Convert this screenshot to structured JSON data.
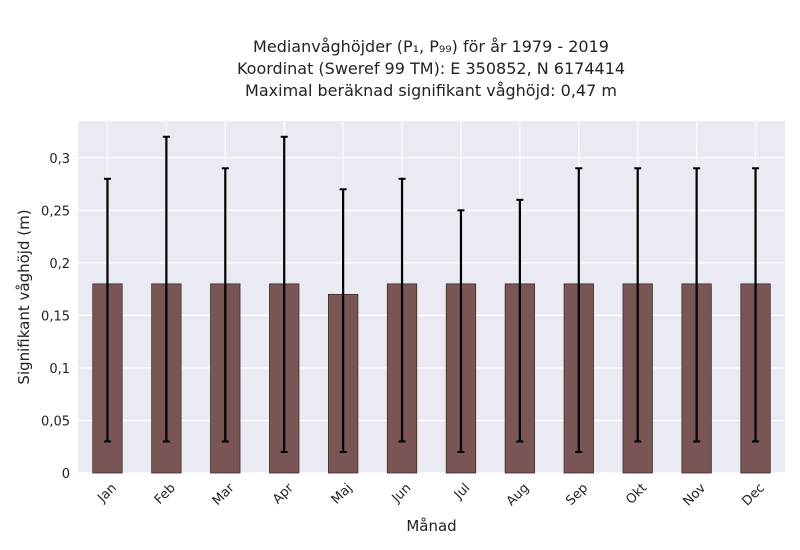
{
  "chart_data": {
    "type": "bar",
    "title_lines": [
      "Medianvåghöjder (P₁, P₉₉) för år 1979 - 2019",
      "Koordinat (Sweref 99 TM): E 350852, N 6174414",
      "Maximal beräknad signifikant våghöjd: 0,47 m"
    ],
    "xlabel": "Månad",
    "ylabel": "Signifikant våghöjd (m)",
    "ylim": [
      0,
      0.335
    ],
    "yticks": [
      0,
      0.05,
      0.1,
      0.15,
      0.2,
      0.25,
      0.3
    ],
    "ytick_labels": [
      "0",
      "0,05",
      "0,1",
      "0,15",
      "0,2",
      "0,25",
      "0,3"
    ],
    "categories": [
      "Jan",
      "Feb",
      "Mar",
      "Apr",
      "Maj",
      "Jun",
      "Jul",
      "Aug",
      "Sep",
      "Okt",
      "Nov",
      "Dec"
    ],
    "values": [
      0.18,
      0.18,
      0.18,
      0.18,
      0.17,
      0.18,
      0.18,
      0.18,
      0.18,
      0.18,
      0.18,
      0.18
    ],
    "p1": [
      0.03,
      0.03,
      0.03,
      0.02,
      0.02,
      0.03,
      0.02,
      0.03,
      0.02,
      0.03,
      0.03,
      0.03
    ],
    "p99": [
      0.28,
      0.32,
      0.29,
      0.32,
      0.27,
      0.28,
      0.25,
      0.26,
      0.29,
      0.29,
      0.29,
      0.29
    ],
    "grid": true,
    "colors": {
      "bar": "#7a5555",
      "bar_edge": "#3f2b2b",
      "plot_bg": "#eaeaf2",
      "grid": "#ffffff",
      "error": "#000000"
    }
  }
}
